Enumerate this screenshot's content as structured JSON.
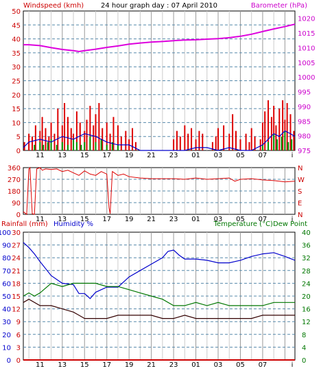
{
  "title": "24 hour graph day : 07 April 2010",
  "colors": {
    "wind": "#dd0000",
    "gust": "#009900",
    "avgwind": "#0000cc",
    "barometer": "#dd00dd",
    "direction": "#dd0000",
    "humidity": "#0000cc",
    "temperature": "#007700",
    "dewpoint": "#330000",
    "rain": "#cc0000",
    "grid": "#5588aa",
    "vgrid": "#b0b0b0"
  },
  "time_ticks": [
    "11",
    "13",
    "15",
    "17",
    "19",
    "21",
    "23",
    "01",
    "03",
    "05",
    "07"
  ],
  "chart_data": [
    {
      "type": "line",
      "id": "wind",
      "title": "24 hour graph day : 07 April 2010",
      "left_label": "Windspeed (kmh)",
      "right_label": "Barometer (hPa)",
      "left_ticks": [
        "50",
        "45",
        "40",
        "35",
        "30",
        "25",
        "20",
        "15",
        "10",
        "5",
        "0"
      ],
      "right_ticks": [
        "1020",
        "1015",
        "1010",
        "1005",
        "1000",
        "995",
        "990",
        "985",
        "980",
        "975"
      ],
      "ylim_left": [
        0,
        50
      ],
      "ylim_right": [
        975,
        1022.5
      ],
      "x_hours": [
        9.5,
        33.9
      ],
      "series": [
        {
          "key": "barometer",
          "axis": "right",
          "x": [
            9.5,
            10,
            11,
            12,
            13,
            14,
            14.5,
            15,
            16,
            17,
            18,
            19,
            20,
            21,
            22,
            23,
            24,
            25,
            26,
            27,
            28,
            29,
            30,
            31,
            32,
            33,
            33.9
          ],
          "values": [
            1011,
            1011,
            1010.7,
            1010,
            1009.4,
            1009,
            1008.7,
            1009,
            1009.5,
            1010.1,
            1010.6,
            1011.2,
            1011.6,
            1011.9,
            1012.1,
            1012.4,
            1012.6,
            1012.7,
            1012.9,
            1013.1,
            1013.4,
            1013.9,
            1014.6,
            1015.5,
            1016.4,
            1017.2,
            1018
          ]
        },
        {
          "key": "avgwind",
          "axis": "left",
          "x": [
            9.5,
            10,
            11,
            12,
            13,
            14,
            15,
            16,
            17,
            18,
            19,
            19.5,
            20,
            22,
            24,
            25,
            26,
            27,
            28,
            29,
            30,
            31,
            31.5,
            32,
            32.5,
            33,
            33.5,
            33.9
          ],
          "values": [
            1,
            3,
            4,
            3,
            5,
            4,
            6,
            5,
            3,
            2,
            2,
            1,
            0,
            0,
            0,
            1,
            1,
            0,
            1,
            0,
            0,
            2,
            4,
            6,
            5,
            7,
            6,
            5
          ]
        },
        {
          "key": "gust_bars",
          "axis": "left",
          "x": [
            10.5,
            11,
            11.3,
            11.7,
            12,
            12.5,
            13,
            13.5,
            14,
            14.3,
            14.7,
            15,
            15.5,
            16,
            16.5,
            17,
            17.5,
            18,
            31,
            31.5,
            32,
            32.3,
            32.7,
            33,
            33.3,
            33.6
          ],
          "values": [
            2,
            3,
            2,
            3,
            4,
            2,
            3,
            2,
            4,
            3,
            2,
            3,
            5,
            3,
            4,
            2,
            3,
            2,
            2,
            3,
            6,
            4,
            5,
            7,
            3,
            4
          ]
        },
        {
          "key": "wind_bars",
          "axis": "left",
          "x": [
            9.6,
            10,
            10.3,
            10.6,
            11,
            11.2,
            11.5,
            11.8,
            12,
            12.3,
            12.6,
            13,
            13.2,
            13.5,
            13.8,
            14,
            14.3,
            14.6,
            15,
            15.2,
            15.5,
            15.8,
            16,
            16.3,
            16.6,
            17,
            17.3,
            17.6,
            18,
            18.3,
            18.7,
            19,
            19.3,
            19.6,
            23,
            23.3,
            23.6,
            24,
            24.3,
            24.6,
            25,
            25.3,
            25.6,
            26.5,
            26.8,
            27,
            27.5,
            28,
            28.3,
            28.6,
            29,
            29.5,
            29.8,
            30,
            30.3,
            30.8,
            31,
            31.2,
            31.5,
            31.8,
            32,
            32.2,
            32.5,
            32.8,
            33,
            33.2,
            33.5,
            33.8
          ],
          "values": [
            3,
            6,
            5,
            9,
            7,
            12,
            8,
            5,
            10,
            6,
            15,
            9,
            17,
            12,
            8,
            6,
            14,
            10,
            7,
            11,
            16,
            9,
            13,
            17,
            8,
            10,
            6,
            12,
            9,
            5,
            7,
            4,
            8,
            3,
            4,
            7,
            5,
            9,
            6,
            8,
            4,
            7,
            6,
            3,
            5,
            8,
            9,
            6,
            13,
            7,
            4,
            6,
            3,
            8,
            5,
            4,
            10,
            14,
            18,
            12,
            16,
            9,
            15,
            18,
            11,
            17,
            13,
            7
          ]
        }
      ]
    },
    {
      "type": "line",
      "id": "direction",
      "left_ticks": [
        "360",
        "270",
        "180",
        "90",
        "0"
      ],
      "right_ticks": [
        "N",
        "W",
        "S",
        "E",
        "N"
      ],
      "ylim": [
        0,
        360
      ],
      "series": [
        {
          "key": "direction",
          "x": [
            9.5,
            9.8,
            10,
            10.1,
            10.3,
            10.5,
            10.7,
            11,
            11.2,
            11.5,
            12,
            12.5,
            13,
            13.5,
            14,
            14.5,
            15,
            15.5,
            16,
            16.5,
            17,
            17.2,
            17.3,
            17.5,
            18,
            18.5,
            19,
            20,
            21,
            22,
            23,
            24,
            25,
            26,
            27,
            28,
            28.5,
            29,
            30,
            31,
            32,
            33,
            33.9
          ],
          "values": [
            20,
            0,
            350,
            360,
            5,
            0,
            350,
            360,
            340,
            350,
            345,
            350,
            330,
            340,
            320,
            300,
            335,
            310,
            300,
            330,
            310,
            50,
            5,
            330,
            300,
            310,
            290,
            280,
            275,
            275,
            275,
            270,
            280,
            270,
            275,
            280,
            255,
            270,
            275,
            265,
            260,
            250,
            255
          ]
        }
      ]
    },
    {
      "type": "line",
      "id": "temp",
      "left_label": "Rainfall (mm)",
      "mid_label": "Humidity %",
      "right_label": "Temperature (°C)Dew Point",
      "rain_ticks": [
        "30",
        "27",
        "24",
        "21",
        "18",
        "15",
        "12",
        "9",
        "6",
        "3",
        "0"
      ],
      "hum_ticks": [
        "100",
        "90",
        "80",
        "70",
        "60",
        "50",
        "40",
        "30",
        "20",
        "10",
        "0"
      ],
      "temp_ticks": [
        "40",
        "36",
        "32",
        "28",
        "24",
        "20",
        "16",
        "12",
        "8",
        "4",
        "0"
      ],
      "ylim_temp": [
        0,
        40
      ],
      "ylim_hum": [
        0,
        100
      ],
      "series": [
        {
          "key": "humidity",
          "x": [
            9.5,
            10,
            10.5,
            11,
            12,
            13,
            14,
            14.5,
            15,
            15.5,
            16,
            17,
            18,
            19,
            20,
            21,
            22,
            22.5,
            23,
            23.5,
            24,
            25,
            26,
            27,
            28,
            29,
            30,
            31,
            32,
            33,
            33.9
          ],
          "values": [
            92,
            88,
            83,
            77,
            66,
            60,
            59,
            52,
            52,
            48,
            53,
            57,
            57,
            65,
            70,
            75,
            80,
            85,
            86,
            82,
            79,
            79,
            78,
            76,
            76,
            78,
            81,
            83,
            84,
            81,
            78
          ]
        },
        {
          "key": "temperature",
          "x": [
            9.5,
            10,
            10.5,
            11,
            12,
            13,
            14,
            15,
            16,
            17,
            18,
            19,
            20,
            21,
            22,
            23,
            24,
            25,
            26,
            27,
            28,
            29,
            30,
            31,
            32,
            33,
            33.9
          ],
          "values": [
            20,
            21,
            20,
            21,
            24,
            23,
            24,
            24,
            24,
            23,
            23,
            22,
            21,
            20,
            19,
            17,
            17,
            18,
            17,
            18,
            17,
            17,
            17,
            17,
            18,
            18,
            18
          ]
        },
        {
          "key": "dewpoint",
          "x": [
            9.5,
            10,
            11,
            12,
            13,
            14,
            14.5,
            15,
            16,
            17,
            18,
            19,
            20,
            21,
            22,
            23,
            24,
            25,
            26,
            27,
            28,
            29,
            30,
            31,
            32,
            33,
            33.9
          ],
          "values": [
            18,
            19,
            17,
            17,
            16,
            15,
            14,
            13,
            13,
            13,
            14,
            14,
            14,
            14,
            13,
            13,
            14,
            13,
            13,
            13,
            13,
            13,
            13,
            14,
            14,
            14,
            14
          ]
        },
        {
          "key": "rain",
          "x": [
            9.5,
            33.9
          ],
          "values": [
            0,
            0
          ]
        }
      ]
    }
  ]
}
